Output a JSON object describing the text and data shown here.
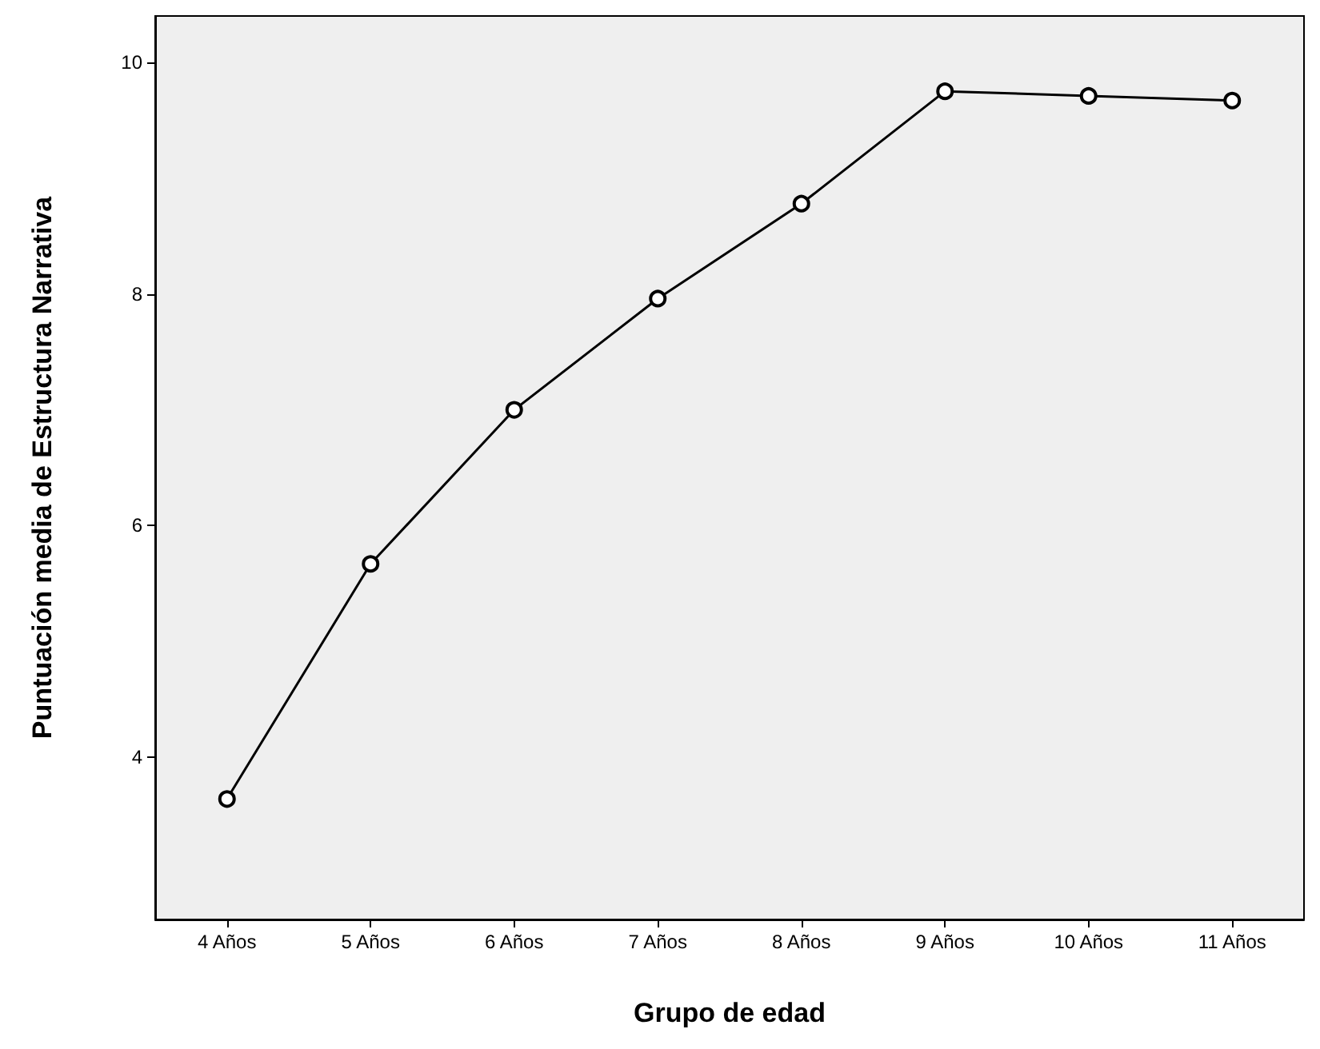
{
  "chart_data": {
    "type": "line",
    "xlabel": "Grupo de edad",
    "ylabel": "Puntuación media de Estructura Narrativa",
    "categories": [
      "4 Años",
      "5 Años",
      "6 Años",
      "7 Años",
      "8 Años",
      "9 Años",
      "10 Años",
      "11 Años"
    ],
    "series": [
      {
        "color": "#000000",
        "values": [
          3.64,
          5.67,
          7.0,
          7.96,
          8.78,
          9.75,
          9.71,
          9.67
        ]
      }
    ],
    "ylim": [
      2.6,
      10.4
    ],
    "yticks": [
      4,
      6,
      8,
      10
    ],
    "grid": false,
    "marker": "circle",
    "line_style": "solid"
  }
}
